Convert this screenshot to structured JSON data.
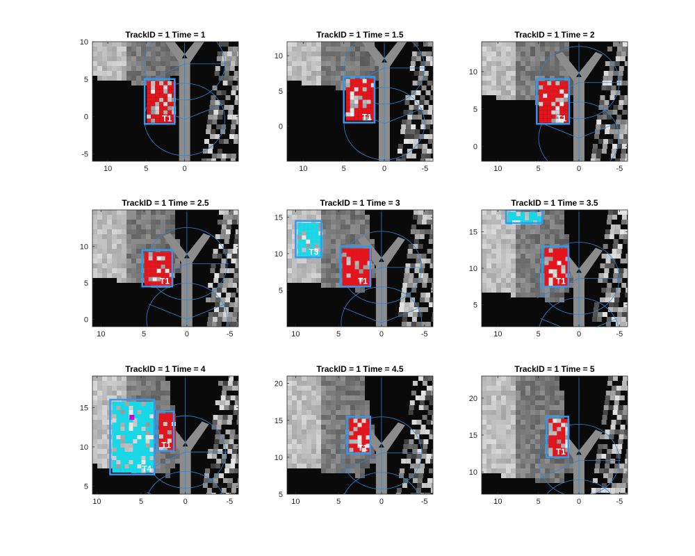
{
  "figure": {
    "background": "#ffffff",
    "colors": {
      "track_box": "#3399ee",
      "coverage_lines": "#2f86d6",
      "own_track_cells": "#e3141c",
      "other_track_cells": "#18d8e8",
      "magenta_cell": "#d400d4",
      "road_gray": "#8c8c8c",
      "grid_dark": "#0a0a0a"
    }
  },
  "chart_data": [
    {
      "type": "heatmap",
      "title": "TrackID = 1 Time = 1",
      "xlim": [
        12,
        -7
      ],
      "ylim": [
        -6,
        10
      ],
      "x_reversed": true,
      "xticks": [
        "10",
        "5",
        "0"
      ],
      "xtick_values": [
        10,
        5,
        0
      ],
      "yticks": [
        "-5",
        "0",
        "5",
        "10"
      ],
      "ytick_values": [
        -5,
        0,
        5,
        10
      ],
      "ego_y": 3.5,
      "tracks": [
        {
          "label": "T1",
          "x": [
            1.3,
            5.2
          ],
          "y": [
            -1,
            5
          ],
          "fill": "red"
        }
      ]
    },
    {
      "type": "heatmap",
      "title": "TrackID = 1 Time = 1.5",
      "xlim": [
        12,
        -6
      ],
      "ylim": [
        -5,
        12
      ],
      "x_reversed": true,
      "xticks": [
        "10",
        "5",
        "0",
        "-5"
      ],
      "xtick_values": [
        10,
        5,
        0,
        -5
      ],
      "yticks": [
        "0",
        "5",
        "10"
      ],
      "ytick_values": [
        0,
        5,
        10
      ],
      "ego_y": 4.5,
      "tracks": [
        {
          "label": "T1",
          "x": [
            1.2,
            5.0
          ],
          "y": [
            0.5,
            7
          ],
          "fill": "red"
        }
      ]
    },
    {
      "type": "heatmap",
      "title": "TrackID = 1 Time = 2",
      "xlim": [
        12,
        -6
      ],
      "ylim": [
        -2,
        14
      ],
      "x_reversed": true,
      "xticks": [
        "10",
        "5",
        "0",
        "-5"
      ],
      "xtick_values": [
        10,
        5,
        0,
        -5
      ],
      "yticks": [
        "0",
        "5",
        "10"
      ],
      "ytick_values": [
        0,
        5,
        10
      ],
      "ego_y": 5,
      "tracks": [
        {
          "label": "T1",
          "x": [
            1.2,
            5.2
          ],
          "y": [
            3,
            9
          ],
          "fill": "red"
        }
      ]
    },
    {
      "type": "heatmap",
      "title": "TrackID = 1 Time = 2.5",
      "xlim": [
        11,
        -6
      ],
      "ylim": [
        -1,
        15
      ],
      "x_reversed": true,
      "xticks": [
        "10",
        "5",
        "0",
        "-5"
      ],
      "xtick_values": [
        10,
        5,
        0,
        -5
      ],
      "yticks": [
        "0",
        "5",
        "10"
      ],
      "ytick_values": [
        0,
        5,
        10
      ],
      "ego_y": 4,
      "tracks": [
        {
          "label": "T1",
          "x": [
            1.7,
            5.2
          ],
          "y": [
            4.5,
            9.5
          ],
          "fill": "red"
        }
      ]
    },
    {
      "type": "heatmap",
      "title": "TrackID = 1 Time = 3",
      "xlim": [
        11,
        -6
      ],
      "ylim": [
        0,
        16
      ],
      "x_reversed": true,
      "xticks": [
        "10",
        "5",
        "0",
        "-5"
      ],
      "xtick_values": [
        10,
        5,
        0,
        -5
      ],
      "yticks": [
        "5",
        "10",
        "15"
      ],
      "ytick_values": [
        5,
        10,
        15
      ],
      "ego_y": 4.5,
      "tracks": [
        {
          "label": "T1",
          "x": [
            1.3,
            4.8
          ],
          "y": [
            5.5,
            11
          ],
          "fill": "red"
        },
        {
          "label": "T3",
          "x": [
            7.0,
            10.0
          ],
          "y": [
            9.5,
            14.5
          ],
          "fill": "cyan"
        }
      ]
    },
    {
      "type": "heatmap",
      "title": "TrackID = 1 Time = 3.5",
      "xlim": [
        12,
        -6
      ],
      "ylim": [
        2,
        18
      ],
      "x_reversed": true,
      "xticks": [
        "10",
        "5",
        "0",
        "-5"
      ],
      "xtick_values": [
        10,
        5,
        0,
        -5
      ],
      "yticks": [
        "5",
        "10",
        "15"
      ],
      "ytick_values": [
        5,
        10,
        15
      ],
      "ego_y": 5,
      "tracks": [
        {
          "label": "T1",
          "x": [
            1.3,
            4.5
          ],
          "y": [
            7.5,
            13
          ],
          "fill": "red"
        },
        {
          "label": "",
          "x": [
            4.5,
            9.0
          ],
          "y": [
            16.2,
            18
          ],
          "fill": "cyan"
        }
      ]
    },
    {
      "type": "heatmap",
      "title": "TrackID = 1 Time = 4",
      "xlim": [
        10.5,
        -6
      ],
      "ylim": [
        4,
        19
      ],
      "x_reversed": true,
      "xticks": [
        "10",
        "5",
        "0",
        "-5"
      ],
      "xtick_values": [
        10,
        5,
        0,
        -5
      ],
      "yticks": [
        "5",
        "10",
        "15"
      ],
      "ytick_values": [
        5,
        10,
        15
      ],
      "ego_y": 6,
      "tracks": [
        {
          "label": "T1",
          "x": [
            1.3,
            3.2
          ],
          "y": [
            9.5,
            14.5
          ],
          "fill": "red"
        },
        {
          "label": "T4",
          "x": [
            3.5,
            8.5
          ],
          "y": [
            6.5,
            16
          ],
          "fill": "cyan"
        }
      ]
    },
    {
      "type": "heatmap",
      "title": "TrackID = 1 Time = 4.5",
      "xlim": [
        11,
        -6
      ],
      "ylim": [
        5,
        21
      ],
      "x_reversed": true,
      "xticks": [
        "10",
        "5",
        "0",
        "-5"
      ],
      "xtick_values": [
        10,
        5,
        0,
        -5
      ],
      "yticks": [
        "5",
        "10",
        "15",
        "20"
      ],
      "ytick_values": [
        5,
        10,
        15,
        20
      ],
      "ego_y": 7,
      "tracks": [
        {
          "label": "T1",
          "x": [
            1.3,
            4.0
          ],
          "y": [
            10.5,
            15.5
          ],
          "fill": "red"
        }
      ]
    },
    {
      "type": "heatmap",
      "title": "TrackID = 1 Time = 5",
      "xlim": [
        12,
        -6
      ],
      "ylim": [
        7,
        23
      ],
      "x_reversed": true,
      "xticks": [
        "10",
        "5",
        "0",
        "-5"
      ],
      "xtick_values": [
        10,
        5,
        0,
        -5
      ],
      "yticks": [
        "10",
        "15",
        "20"
      ],
      "ytick_values": [
        10,
        15,
        20
      ],
      "ego_y": 8,
      "tracks": [
        {
          "label": "T1",
          "x": [
            1.3,
            4.0
          ],
          "y": [
            12,
            17.5
          ],
          "fill": "red"
        }
      ]
    }
  ]
}
